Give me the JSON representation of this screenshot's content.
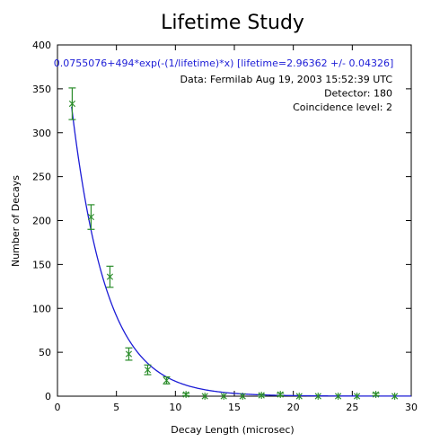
{
  "chart_data": {
    "type": "scatter",
    "title": "Lifetime Study",
    "xlabel": "Decay Length (microsec)",
    "ylabel": "Number of Decays",
    "xlim": [
      0,
      30
    ],
    "ylim": [
      0,
      400
    ],
    "x_ticks": [
      "0",
      "5",
      "10",
      "15",
      "20",
      "25",
      "30"
    ],
    "y_ticks": [
      "0",
      "50",
      "100",
      "150",
      "200",
      "250",
      "300",
      "350",
      "400"
    ],
    "grid": false,
    "fit_text": "0.0755076+494*exp(-(1/lifetime)*x) [lifetime=2.96362 +/- 0.04326]",
    "fit": {
      "a": 0.0755076,
      "b": 494,
      "lifetime": 2.96362
    },
    "annotations": [
      "Data: Fermilab Aug 19, 2003 15:52:39 UTC",
      "Detector: 180",
      "Coincidence level: 2"
    ],
    "points": [
      {
        "x": 1.25,
        "y": 333,
        "err": 18
      },
      {
        "x": 2.85,
        "y": 204,
        "err": 14
      },
      {
        "x": 4.45,
        "y": 136,
        "err": 12
      },
      {
        "x": 6.05,
        "y": 48,
        "err": 7
      },
      {
        "x": 7.65,
        "y": 30,
        "err": 5.5
      },
      {
        "x": 9.25,
        "y": 18,
        "err": 4
      },
      {
        "x": 10.9,
        "y": 2,
        "err": 1.4
      },
      {
        "x": 12.5,
        "y": 0,
        "err": 0
      },
      {
        "x": 14.1,
        "y": 0,
        "err": 0
      },
      {
        "x": 15.7,
        "y": 0,
        "err": 0
      },
      {
        "x": 17.3,
        "y": 1,
        "err": 1
      },
      {
        "x": 18.9,
        "y": 2,
        "err": 1.4
      },
      {
        "x": 20.5,
        "y": 0,
        "err": 0
      },
      {
        "x": 22.1,
        "y": 0,
        "err": 0
      },
      {
        "x": 23.8,
        "y": 0,
        "err": 0
      },
      {
        "x": 25.4,
        "y": 0,
        "err": 0
      },
      {
        "x": 27.0,
        "y": 2,
        "err": 1.4
      },
      {
        "x": 28.6,
        "y": 0,
        "err": 0
      }
    ],
    "colors": {
      "fit": "#1c1cd6",
      "marker": "#2a8c2a",
      "errorbar": "#2a8c2a",
      "fit_text": "#1c1cd6"
    }
  }
}
